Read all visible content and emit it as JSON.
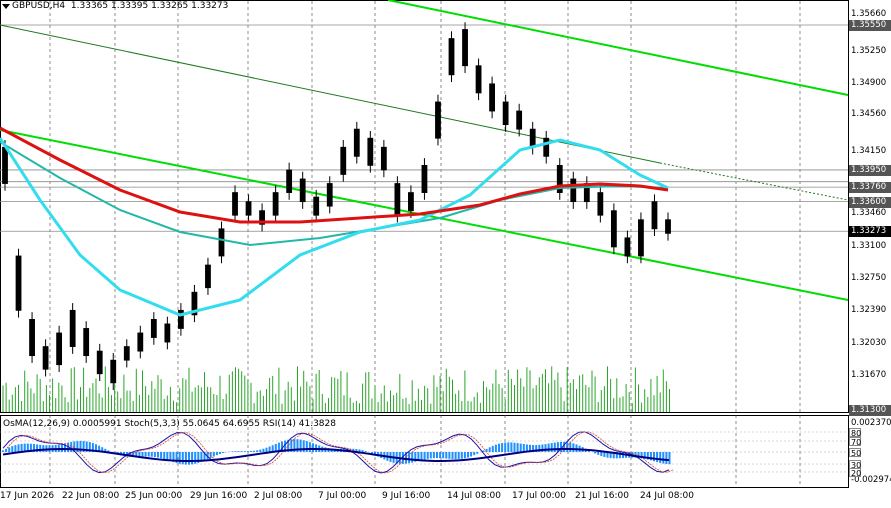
{
  "header": {
    "symbol_timeframe": "GBPUSD,H4",
    "ohlc": "1.33365 1.33395 1.33265 1.33273"
  },
  "indicator_header": "OsMA(12,26,9) 0.0005991 Stoch(5,3,3) 55.0645 64.6955 RSI(14) 41.3828",
  "price_axis": {
    "ticks": [
      "1.35660",
      "1.35250",
      "1.34900",
      "1.34560",
      "1.34150",
      "1.33460",
      "1.33100",
      "1.32750",
      "1.32390",
      "1.32030",
      "1.31670",
      "1.31300"
    ],
    "level_labels": [
      {
        "text": "1.35550",
        "style": "dark"
      },
      {
        "text": "1.33950",
        "style": "dark"
      },
      {
        "text": "1.33760",
        "style": "dark"
      },
      {
        "text": "1.33600",
        "style": "dark"
      },
      {
        "text": "1.33273",
        "style": "black"
      },
      {
        "text": "1.31300",
        "style": "dark"
      }
    ]
  },
  "osc_axis": {
    "top": "0.0023700",
    "bottom": "-0.002974",
    "levels": [
      "80",
      "70",
      "50",
      "30",
      "20"
    ]
  },
  "time_axis": [
    "17 Jun 2026",
    "22 Jun 08:00",
    "25 Jun 00:00",
    "29 Jun 16:00",
    "2 Jul 08:00",
    "7 Jul 00:00",
    "9 Jul 16:00",
    "14 Jul 08:00",
    "17 Jul 00:00",
    "21 Jul 16:00",
    "24 Jul 08:00"
  ],
  "colors": {
    "channel": "#00dd00",
    "ma_red": "#dd1111",
    "ma_cyan": "#33ddee",
    "candle": "#000000",
    "volume": "#2aa52a",
    "osma": "#1e90ff",
    "stoch_main": "#1515aa",
    "rsi": "#000080"
  },
  "icons": [
    "dropdown-triangle-icon"
  ]
}
